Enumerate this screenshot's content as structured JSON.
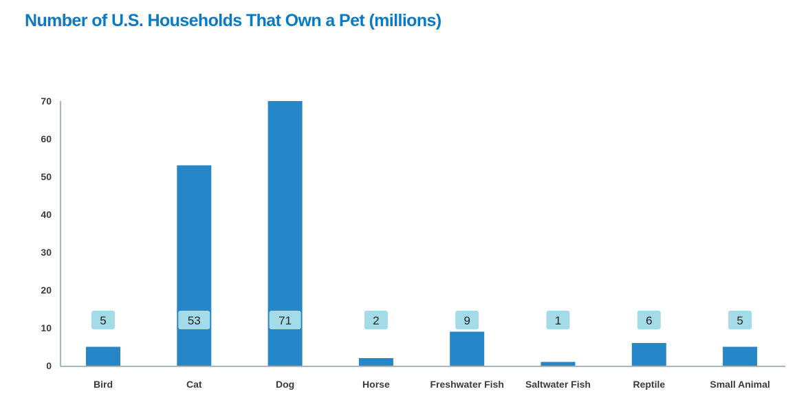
{
  "chart_data": {
    "type": "bar",
    "title": "Number of U.S. Households That Own a Pet (millions)",
    "xlabel": "",
    "ylabel": "",
    "categories": [
      "Bird",
      "Cat",
      "Dog",
      "Horse",
      "Freshwater Fish",
      "Saltwater Fish",
      "Reptile",
      "Small Animal"
    ],
    "values": [
      5,
      53,
      71,
      2,
      9,
      1,
      6,
      5
    ],
    "data_labels": [
      "5",
      "53",
      "71",
      "2",
      "9",
      "1",
      "6",
      "5"
    ],
    "ylim": [
      0,
      70
    ],
    "yticks": [
      "0",
      "10",
      "20",
      "30",
      "40",
      "50",
      "60",
      "70"
    ],
    "grid": false,
    "legend": "none",
    "colors": {
      "bar": "#2587c8",
      "label_box": "#a3dbe8",
      "axis": "#8aa0ad",
      "title": "#0a7ac4"
    }
  }
}
